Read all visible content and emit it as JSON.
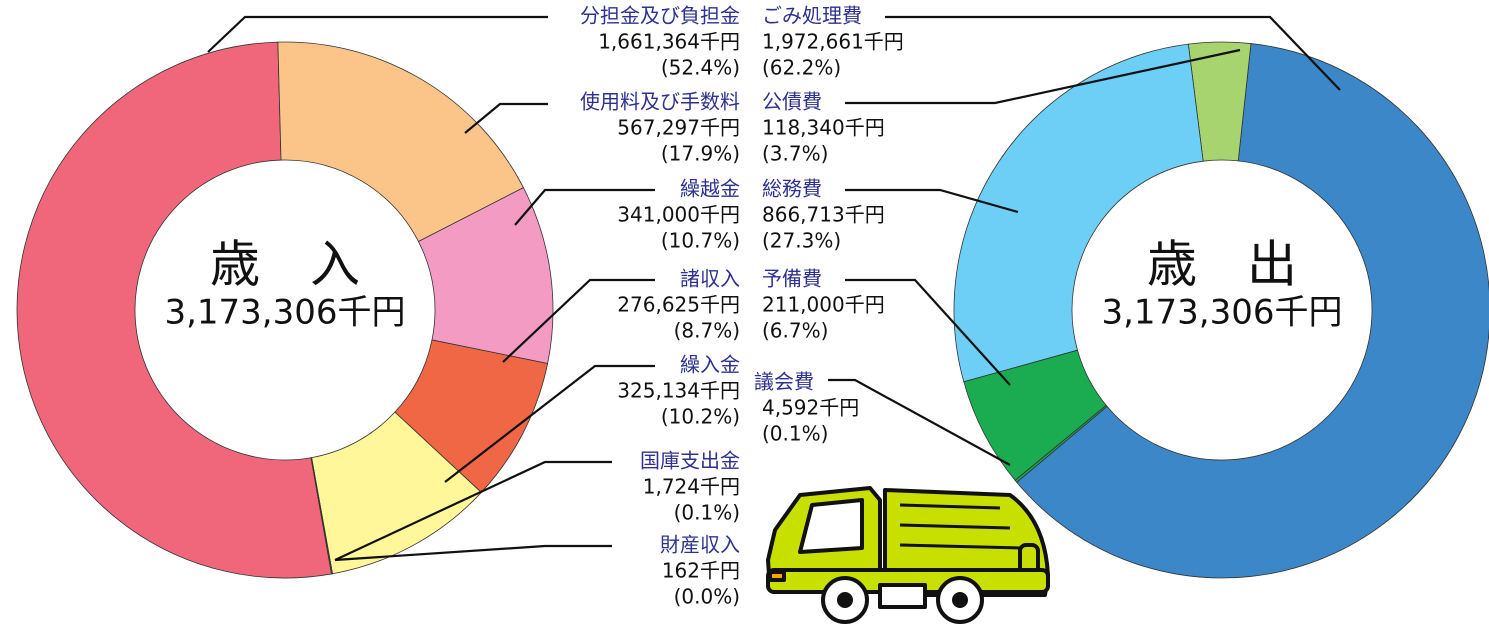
{
  "chart_data": [
    {
      "type": "donut",
      "title": "歳　入",
      "total": {
        "value": 3173306,
        "label": "3,173,306千円"
      },
      "categories": [
        "分担金及び負担金",
        "使用料及び手数料",
        "繰越金",
        "諸収入",
        "繰入金",
        "国庫支出金",
        "財産収入"
      ],
      "values": [
        1661364,
        567297,
        341000,
        276625,
        325134,
        1724,
        162
      ],
      "value_labels": [
        "1,661,364千円",
        "567,297千円",
        "341,000千円",
        "276,625千円",
        "325,134千円",
        "1,724千円",
        "162千円"
      ],
      "percents": [
        52.4,
        17.9,
        10.7,
        8.7,
        10.2,
        0.1,
        0.0
      ],
      "percent_labels": [
        "(52.4%)",
        "(17.9%)",
        "(10.7%)",
        "(8.7%)",
        "(10.2%)",
        "(0.1%)",
        "(0.0%)"
      ],
      "colors": [
        "#f0677b",
        "#fbc58a",
        "#f49bc4",
        "#ef6744",
        "#fff799",
        "#fff799",
        "#fff799"
      ]
    },
    {
      "type": "donut",
      "title": "歳　出",
      "total": {
        "value": 3173306,
        "label": "3,173,306千円"
      },
      "categories": [
        "ごみ処理費",
        "公債費",
        "総務費",
        "予備費",
        "議会費"
      ],
      "values": [
        1972661,
        118340,
        866713,
        211000,
        4592
      ],
      "value_labels": [
        "1,972,661千円",
        "118,340千円",
        "866,713千円",
        "211,000千円",
        "4,592千円"
      ],
      "percents": [
        62.2,
        3.7,
        27.3,
        6.7,
        0.1
      ],
      "percent_labels": [
        "(62.2%)",
        "(3.7%)",
        "(27.3%)",
        "(6.7%)",
        "(0.1%)"
      ],
      "colors": [
        "#3b87c7",
        "#a8d46f",
        "#6dcff6",
        "#1bab50",
        "#1bab50"
      ]
    }
  ]
}
